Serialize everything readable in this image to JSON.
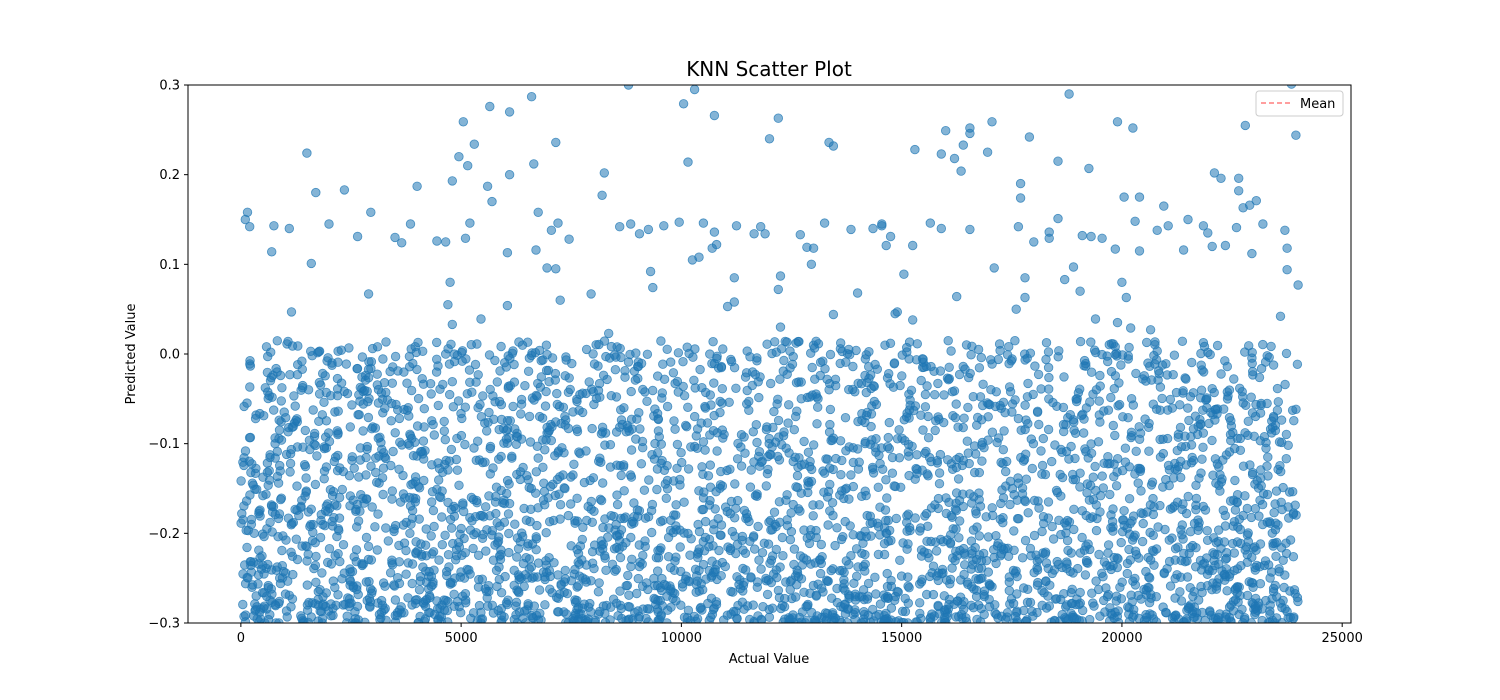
{
  "chart_data": {
    "type": "scatter",
    "title": "KNN Scatter Plot",
    "xlabel": "Actual Value",
    "ylabel": "Predicted Value",
    "xlim": [
      -1200,
      25200
    ],
    "ylim": [
      -0.3,
      0.3
    ],
    "xticks": [
      0,
      5000,
      10000,
      15000,
      20000,
      25000
    ],
    "xtick_labels": [
      "0",
      "5000",
      "10000",
      "15000",
      "20000",
      "25000"
    ],
    "yticks": [
      -0.3,
      -0.2,
      -0.1,
      0.0,
      0.1,
      0.2,
      0.3
    ],
    "ytick_labels": [
      "−0.3",
      "−0.2",
      "−0.1",
      "0.0",
      "0.1",
      "0.2",
      "0.3"
    ],
    "grid": false,
    "legend": {
      "placement": "top-right",
      "entries": [
        {
          "label": "Mean",
          "style": "dashed",
          "color": "#ff7f7f"
        }
      ]
    },
    "colors": {
      "points": "#1f77b4",
      "mean_line": "#ff7f7f"
    },
    "series": [
      {
        "points": [
          [
            100,
            0.15
          ],
          [
            150,
            0.158
          ],
          [
            200,
            0.142
          ],
          [
            750,
            0.143
          ],
          [
            700,
            0.114
          ],
          [
            1100,
            0.14
          ],
          [
            1150,
            0.047
          ],
          [
            1500,
            0.224
          ],
          [
            1600,
            0.101
          ],
          [
            1700,
            0.18
          ],
          [
            2000,
            0.145
          ],
          [
            2350,
            0.183
          ],
          [
            2650,
            0.131
          ],
          [
            2900,
            0.067
          ],
          [
            2950,
            0.158
          ],
          [
            3500,
            0.13
          ],
          [
            3650,
            0.124
          ],
          [
            3850,
            0.145
          ],
          [
            4000,
            0.187
          ],
          [
            4450,
            0.126
          ],
          [
            4650,
            0.125
          ],
          [
            4750,
            0.08
          ],
          [
            4700,
            0.055
          ],
          [
            4800,
            0.033
          ],
          [
            4800,
            0.193
          ],
          [
            4950,
            0.22
          ],
          [
            5050,
            0.259
          ],
          [
            5150,
            0.21
          ],
          [
            5100,
            0.129
          ],
          [
            5200,
            0.146
          ],
          [
            5300,
            0.234
          ],
          [
            5450,
            0.039
          ],
          [
            5600,
            0.187
          ],
          [
            5650,
            0.276
          ],
          [
            5700,
            0.17
          ],
          [
            6050,
            0.113
          ],
          [
            6050,
            0.054
          ],
          [
            6100,
            0.27
          ],
          [
            6100,
            0.2
          ],
          [
            6600,
            0.287
          ],
          [
            6650,
            0.212
          ],
          [
            6750,
            0.158
          ],
          [
            6700,
            0.116
          ],
          [
            6950,
            0.096
          ],
          [
            7050,
            0.138
          ],
          [
            7150,
            0.236
          ],
          [
            7200,
            0.146
          ],
          [
            7150,
            0.095
          ],
          [
            7250,
            0.06
          ],
          [
            7450,
            0.128
          ],
          [
            7950,
            0.067
          ],
          [
            8200,
            0.177
          ],
          [
            8250,
            0.202
          ],
          [
            8350,
            0.023
          ],
          [
            8600,
            0.142
          ],
          [
            8800,
            0.3
          ],
          [
            8850,
            0.145
          ],
          [
            9050,
            0.134
          ],
          [
            9250,
            0.139
          ],
          [
            9300,
            0.092
          ],
          [
            9350,
            0.074
          ],
          [
            9600,
            0.143
          ],
          [
            9950,
            0.147
          ],
          [
            10050,
            0.279
          ],
          [
            10150,
            0.214
          ],
          [
            10300,
            0.295
          ],
          [
            10250,
            0.105
          ],
          [
            10400,
            0.108
          ],
          [
            10500,
            0.146
          ],
          [
            10700,
            0.118
          ],
          [
            10750,
            0.136
          ],
          [
            10800,
            0.122
          ],
          [
            10750,
            0.266
          ],
          [
            11050,
            0.053
          ],
          [
            11200,
            0.058
          ],
          [
            11250,
            0.143
          ],
          [
            11200,
            0.085
          ],
          [
            11650,
            0.134
          ],
          [
            11800,
            0.142
          ],
          [
            11900,
            0.134
          ],
          [
            12000,
            0.24
          ],
          [
            12200,
            0.263
          ],
          [
            12250,
            0.087
          ],
          [
            12200,
            0.072
          ],
          [
            12250,
            0.03
          ],
          [
            12700,
            0.133
          ],
          [
            12850,
            0.119
          ],
          [
            12950,
            0.1
          ],
          [
            13000,
            0.118
          ],
          [
            13250,
            0.146
          ],
          [
            13350,
            0.236
          ],
          [
            13450,
            0.232
          ],
          [
            13450,
            0.044
          ],
          [
            13850,
            0.139
          ],
          [
            14000,
            0.068
          ],
          [
            14350,
            0.14
          ],
          [
            14550,
            0.143
          ],
          [
            14550,
            0.145
          ],
          [
            14650,
            0.121
          ],
          [
            14750,
            0.131
          ],
          [
            14850,
            0.045
          ],
          [
            14900,
            0.047
          ],
          [
            15050,
            0.089
          ],
          [
            15250,
            0.121
          ],
          [
            15300,
            0.228
          ],
          [
            15250,
            0.038
          ],
          [
            15650,
            0.146
          ],
          [
            15900,
            0.14
          ],
          [
            15900,
            0.223
          ],
          [
            16000,
            0.249
          ],
          [
            16200,
            0.218
          ],
          [
            16400,
            0.233
          ],
          [
            16350,
            0.204
          ],
          [
            16250,
            0.064
          ],
          [
            16550,
            0.252
          ],
          [
            16550,
            0.246
          ],
          [
            16550,
            0.139
          ],
          [
            16950,
            0.225
          ],
          [
            17050,
            0.259
          ],
          [
            17100,
            0.096
          ],
          [
            17600,
            0.05
          ],
          [
            17650,
            0.142
          ],
          [
            17700,
            0.19
          ],
          [
            17700,
            0.174
          ],
          [
            17800,
            0.085
          ],
          [
            17800,
            0.063
          ],
          [
            17900,
            0.242
          ],
          [
            18000,
            0.125
          ],
          [
            18350,
            0.129
          ],
          [
            18350,
            0.136
          ],
          [
            18550,
            0.151
          ],
          [
            18550,
            0.215
          ],
          [
            18700,
            0.083
          ],
          [
            18800,
            0.29
          ],
          [
            18900,
            0.097
          ],
          [
            19050,
            0.07
          ],
          [
            19100,
            0.132
          ],
          [
            19250,
            0.207
          ],
          [
            19300,
            0.131
          ],
          [
            19400,
            0.039
          ],
          [
            19550,
            0.129
          ],
          [
            19850,
            0.117
          ],
          [
            19900,
            0.259
          ],
          [
            19900,
            0.035
          ],
          [
            20000,
            0.08
          ],
          [
            20050,
            0.175
          ],
          [
            20100,
            0.063
          ],
          [
            20200,
            0.029
          ],
          [
            20250,
            0.252
          ],
          [
            20300,
            0.148
          ],
          [
            20400,
            0.175
          ],
          [
            20400,
            0.115
          ],
          [
            20650,
            0.027
          ],
          [
            20800,
            0.138
          ],
          [
            20950,
            0.165
          ],
          [
            21050,
            0.143
          ],
          [
            21400,
            0.116
          ],
          [
            21500,
            0.15
          ],
          [
            21850,
            0.143
          ],
          [
            21950,
            0.135
          ],
          [
            22050,
            0.12
          ],
          [
            22100,
            0.202
          ],
          [
            22250,
            0.196
          ],
          [
            22350,
            0.121
          ],
          [
            22600,
            0.141
          ],
          [
            22650,
            0.182
          ],
          [
            22650,
            0.196
          ],
          [
            22750,
            0.163
          ],
          [
            22800,
            0.255
          ],
          [
            22900,
            0.166
          ],
          [
            22950,
            0.112
          ],
          [
            23050,
            0.171
          ],
          [
            23200,
            0.145
          ],
          [
            23600,
            0.042
          ],
          [
            23700,
            0.138
          ],
          [
            23750,
            0.118
          ],
          [
            23750,
            0.094
          ],
          [
            23850,
            0.301
          ],
          [
            23950,
            0.244
          ],
          [
            24000,
            0.077
          ]
        ]
      }
    ]
  }
}
